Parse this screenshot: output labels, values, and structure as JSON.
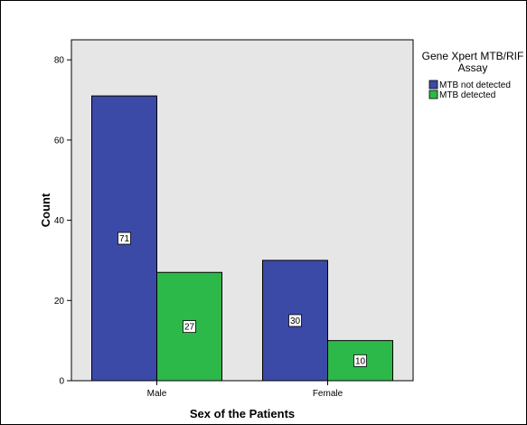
{
  "chart_data": {
    "type": "bar",
    "title": "",
    "xlabel": "Sex of the Patients",
    "ylabel": "Count",
    "categories": [
      "Male",
      "Female"
    ],
    "series": [
      {
        "name": "MTB not detected",
        "values": [
          71,
          30
        ],
        "color": "#3b4aa6"
      },
      {
        "name": "MTB detected",
        "values": [
          27,
          10
        ],
        "color": "#2db84a"
      }
    ],
    "data_labels": [
      [
        "71",
        "30"
      ],
      [
        "27",
        "10"
      ]
    ],
    "y_ticks": [
      "0",
      "20",
      "40",
      "60",
      "80"
    ],
    "ylim": [
      0,
      85
    ],
    "grid": false,
    "plot_background": "#e6e6e6",
    "legend": {
      "title": "Gene Xpert MTB/RIF Assay",
      "title_lines": [
        "Gene Xpert MTB/RIF",
        "Assay"
      ],
      "placement": "right"
    }
  }
}
